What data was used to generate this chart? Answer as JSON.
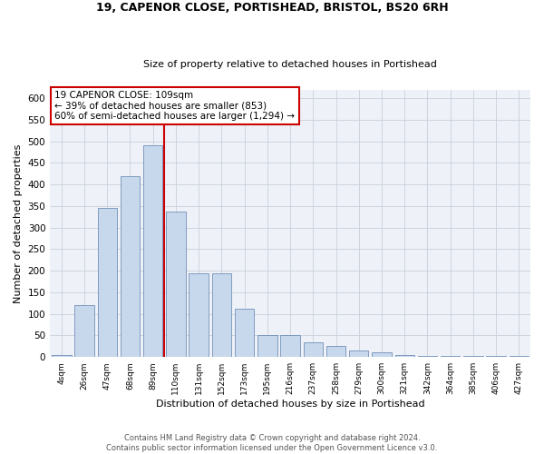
{
  "title1": "19, CAPENOR CLOSE, PORTISHEAD, BRISTOL, BS20 6RH",
  "title2": "Size of property relative to detached houses in Portishead",
  "xlabel": "Distribution of detached houses by size in Portishead",
  "ylabel": "Number of detached properties",
  "categories": [
    "4sqm",
    "26sqm",
    "47sqm",
    "68sqm",
    "89sqm",
    "110sqm",
    "131sqm",
    "152sqm",
    "173sqm",
    "195sqm",
    "216sqm",
    "237sqm",
    "258sqm",
    "279sqm",
    "300sqm",
    "321sqm",
    "342sqm",
    "364sqm",
    "385sqm",
    "406sqm",
    "427sqm"
  ],
  "values": [
    5,
    120,
    345,
    420,
    490,
    337,
    195,
    195,
    112,
    50,
    50,
    35,
    25,
    15,
    10,
    5,
    3,
    2,
    2,
    3,
    2
  ],
  "vline_index": 5,
  "vline_color": "#cc0000",
  "annotation_title": "19 CAPENOR CLOSE: 109sqm",
  "annotation_line1": "← 39% of detached houses are smaller (853)",
  "annotation_line2": "60% of semi-detached houses are larger (1,294) →",
  "annotation_box_color": "#cc0000",
  "ylim": [
    0,
    620
  ],
  "yticks": [
    0,
    50,
    100,
    150,
    200,
    250,
    300,
    350,
    400,
    450,
    500,
    550,
    600
  ],
  "footer1": "Contains HM Land Registry data © Crown copyright and database right 2024.",
  "footer2": "Contains public sector information licensed under the Open Government Licence v3.0.",
  "bar_color": "#c8d8ec",
  "bar_edge_color": "#7090b8",
  "bg_color": "#eef2f8",
  "grid_color": "#c8d0dc"
}
